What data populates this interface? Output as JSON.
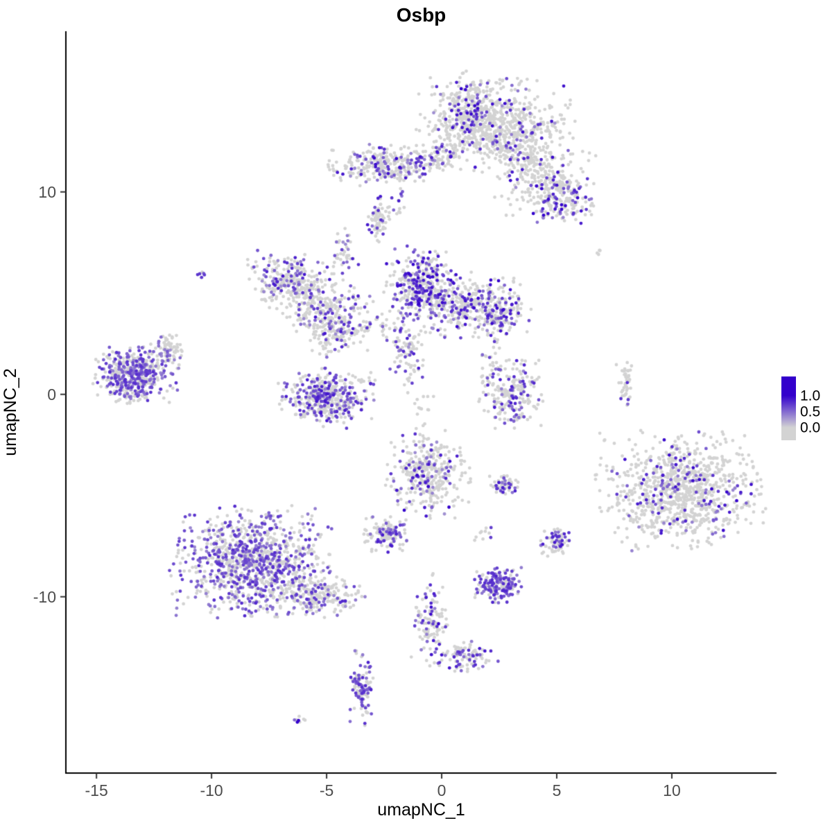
{
  "chart_data": {
    "type": "scatter",
    "title": "Osbp",
    "xlabel": "umapNC_1",
    "ylabel": "umapNC_2",
    "xlim": [
      -16.33,
      14.55
    ],
    "ylim": [
      -18.71,
      17.94
    ],
    "x_ticks": [
      -15,
      -10,
      -5,
      0,
      5,
      10
    ],
    "y_ticks": [
      -10,
      0,
      10
    ],
    "grid": false,
    "point_radius": 2.4,
    "colors": {
      "low": "#D3D3D3",
      "high": "#3300CC"
    },
    "legend": {
      "position": "right",
      "labels": [
        "1.0",
        "0.5",
        "0.0"
      ],
      "values": [
        1.0,
        0.5,
        0.0
      ],
      "low_color": "#D3D3D3",
      "high_color": "#3300CC"
    },
    "clusters": [
      {
        "n": 650,
        "x": 2.3,
        "y": 13.4,
        "sx": 1.5,
        "sy": 1.0,
        "f": 0.08,
        "lo": 0.3,
        "hi": 1.0
      },
      {
        "n": 180,
        "x": 1.1,
        "y": 14.1,
        "sx": 0.55,
        "sy": 0.8,
        "f": 0.35,
        "lo": 0.4,
        "hi": 1.0
      },
      {
        "n": 140,
        "x": 3.3,
        "y": 11.9,
        "sx": 0.8,
        "sy": 0.6,
        "f": 0.1,
        "lo": 0.3,
        "hi": 0.9
      },
      {
        "n": 220,
        "x": 4.6,
        "y": 10.6,
        "sx": 1.0,
        "sy": 0.8,
        "f": 0.15,
        "lo": 0.3,
        "hi": 1.0
      },
      {
        "n": 140,
        "x": 5.3,
        "y": 9.6,
        "sx": 0.6,
        "sy": 0.55,
        "f": 0.3,
        "lo": 0.4,
        "hi": 1.0
      },
      {
        "n": 280,
        "x": -2.4,
        "y": 11.3,
        "sx": 1.1,
        "sy": 0.45,
        "f": 0.22,
        "lo": 0.3,
        "hi": 1.0
      },
      {
        "n": 70,
        "x": -0.2,
        "y": 11.7,
        "sx": 0.5,
        "sy": 0.35,
        "f": 0.15,
        "lo": 0.3,
        "hi": 0.9
      },
      {
        "n": 60,
        "x": -2.8,
        "y": 8.6,
        "sx": 0.18,
        "sy": 0.55,
        "f": 0.25,
        "lo": 0.3,
        "hi": 0.9
      },
      {
        "n": 230,
        "x": -6.7,
        "y": 5.7,
        "sx": 0.75,
        "sy": 0.6,
        "f": 0.3,
        "lo": 0.3,
        "hi": 0.9
      },
      {
        "n": 260,
        "x": -5.3,
        "y": 4.4,
        "sx": 1.0,
        "sy": 0.7,
        "f": 0.25,
        "lo": 0.3,
        "hi": 0.9
      },
      {
        "n": 120,
        "x": -4.6,
        "y": 3.0,
        "sx": 0.6,
        "sy": 0.5,
        "f": 0.3,
        "lo": 0.3,
        "hi": 0.9
      },
      {
        "n": 330,
        "x": -0.9,
        "y": 5.5,
        "sx": 0.7,
        "sy": 0.8,
        "f": 0.45,
        "lo": 0.4,
        "hi": 1.0
      },
      {
        "n": 380,
        "x": 1.2,
        "y": 4.4,
        "sx": 1.2,
        "sy": 0.7,
        "f": 0.28,
        "lo": 0.3,
        "hi": 1.0
      },
      {
        "n": 110,
        "x": 2.6,
        "y": 3.9,
        "sx": 0.5,
        "sy": 0.4,
        "f": 0.3,
        "lo": 0.4,
        "hi": 1.0
      },
      {
        "n": 90,
        "x": -1.6,
        "y": 2.2,
        "sx": 0.4,
        "sy": 0.8,
        "f": 0.25,
        "lo": 0.3,
        "hi": 0.9
      },
      {
        "n": 460,
        "x": -13.3,
        "y": 1.0,
        "sx": 0.8,
        "sy": 0.65,
        "f": 0.55,
        "lo": 0.35,
        "hi": 0.8
      },
      {
        "n": 70,
        "x": -12.0,
        "y": 2.2,
        "sx": 0.35,
        "sy": 0.4,
        "f": 0.2,
        "lo": 0.3,
        "hi": 0.7
      },
      {
        "n": 420,
        "x": -5.0,
        "y": -0.2,
        "sx": 0.9,
        "sy": 0.65,
        "f": 0.4,
        "lo": 0.35,
        "hi": 0.9
      },
      {
        "n": 210,
        "x": 3.0,
        "y": 0.0,
        "sx": 0.6,
        "sy": 0.75,
        "f": 0.3,
        "lo": 0.35,
        "hi": 0.9
      },
      {
        "n": 340,
        "x": -0.6,
        "y": -4.0,
        "sx": 0.8,
        "sy": 0.95,
        "f": 0.22,
        "lo": 0.3,
        "hi": 1.0
      },
      {
        "n": 60,
        "x": 2.7,
        "y": -4.5,
        "sx": 0.3,
        "sy": 0.25,
        "f": 0.3,
        "lo": 0.4,
        "hi": 0.9
      },
      {
        "n": 950,
        "x": 10.4,
        "y": -4.8,
        "sx": 1.6,
        "sy": 1.3,
        "f": 0.13,
        "lo": 0.35,
        "hi": 1.0
      },
      {
        "n": 1050,
        "x": -8.3,
        "y": -8.3,
        "sx": 1.5,
        "sy": 1.2,
        "f": 0.45,
        "lo": 0.35,
        "hi": 0.8
      },
      {
        "n": 220,
        "x": -5.4,
        "y": -9.9,
        "sx": 0.9,
        "sy": 0.5,
        "f": 0.25,
        "lo": 0.3,
        "hi": 0.8
      },
      {
        "n": 130,
        "x": -2.4,
        "y": -6.9,
        "sx": 0.45,
        "sy": 0.4,
        "f": 0.3,
        "lo": 0.35,
        "hi": 0.9
      },
      {
        "n": 170,
        "x": 2.5,
        "y": -9.4,
        "sx": 0.5,
        "sy": 0.4,
        "f": 0.65,
        "lo": 0.4,
        "hi": 0.85
      },
      {
        "n": 70,
        "x": 5.0,
        "y": -7.3,
        "sx": 0.3,
        "sy": 0.35,
        "f": 0.4,
        "lo": 0.4,
        "hi": 0.9
      },
      {
        "n": 120,
        "x": -0.5,
        "y": -11.2,
        "sx": 0.35,
        "sy": 1.0,
        "f": 0.3,
        "lo": 0.35,
        "hi": 1.0
      },
      {
        "n": 90,
        "x": 1.2,
        "y": -12.9,
        "sx": 0.6,
        "sy": 0.4,
        "f": 0.35,
        "lo": 0.4,
        "hi": 0.9
      },
      {
        "n": 110,
        "x": -3.5,
        "y": -14.5,
        "sx": 0.25,
        "sy": 0.8,
        "f": 0.55,
        "lo": 0.4,
        "hi": 0.85
      },
      {
        "n": 8,
        "x": -6.2,
        "y": -16.2,
        "sx": 0.15,
        "sy": 0.15,
        "f": 0.5,
        "lo": 0.5,
        "hi": 1.0
      },
      {
        "n": 45,
        "x": 8.0,
        "y": 0.6,
        "sx": 0.18,
        "sy": 0.5,
        "f": 0.15,
        "lo": 0.4,
        "hi": 0.9
      },
      {
        "n": 6,
        "x": -10.5,
        "y": 6.0,
        "sx": 0.1,
        "sy": 0.1,
        "f": 0.5,
        "lo": 0.5,
        "hi": 0.8
      },
      {
        "n": 5,
        "x": 6.8,
        "y": 7.0,
        "sx": 0.1,
        "sy": 0.1,
        "f": 0.0,
        "lo": 0,
        "hi": 0
      },
      {
        "n": 40,
        "x": -4.3,
        "y": 7.0,
        "sx": 0.3,
        "sy": 0.6,
        "f": 0.3,
        "lo": 0.3,
        "hi": 0.9
      },
      {
        "n": 35,
        "x": -2.8,
        "y": 3.4,
        "sx": 0.5,
        "sy": 0.5,
        "f": 0.2,
        "lo": 0.3,
        "hi": 0.8
      },
      {
        "n": 20,
        "x": -2.0,
        "y": 9.3,
        "sx": 0.3,
        "sy": 0.4,
        "f": 0.3,
        "lo": 0.4,
        "hi": 0.9
      },
      {
        "n": 30,
        "x": 2.1,
        "y": 1.7,
        "sx": 0.3,
        "sy": 0.7,
        "f": 0.25,
        "lo": 0.3,
        "hi": 0.9
      },
      {
        "n": 25,
        "x": -0.9,
        "y": -1.5,
        "sx": 0.3,
        "sy": 1.0,
        "f": 0.2,
        "lo": 0.3,
        "hi": 0.9
      },
      {
        "n": 20,
        "x": 0.6,
        "y": 12.4,
        "sx": 0.4,
        "sy": 0.5,
        "f": 0.1,
        "lo": 0.3,
        "hi": 0.9
      },
      {
        "n": 10,
        "x": 1.8,
        "y": -7.0,
        "sx": 0.2,
        "sy": 0.3,
        "f": 0.2,
        "lo": 0.4,
        "hi": 0.8
      }
    ]
  }
}
